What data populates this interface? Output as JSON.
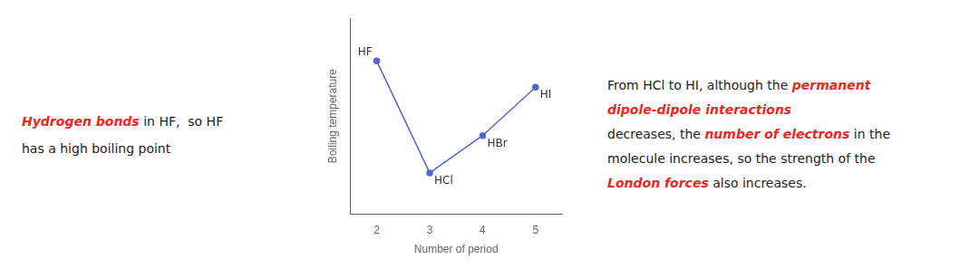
{
  "chart_data": {
    "type": "line",
    "x": [
      2,
      3,
      4,
      5
    ],
    "values": [
      0.82,
      0.22,
      0.42,
      0.68
    ],
    "point_labels": [
      "HF",
      "HCl",
      "HBr",
      "HI"
    ],
    "color": "#5566cc",
    "marker": "circle",
    "xlabel": "Number of period",
    "ylabel": "Boiling temperature",
    "xlim": [
      1.5,
      5.5
    ],
    "ylim": [
      0.0,
      1.05
    ],
    "xticks": [
      2,
      3,
      4,
      5
    ],
    "yticks": [],
    "grid": false,
    "tick_labels": "x",
    "annotations": [
      [
        [
          {
            "text": "Hydrogen bonds",
            "color": "#e8281e"
          },
          {
            "text": " in HF,  so HF"
          }
        ],
        [
          {
            "text": "has a high boiling point"
          }
        ]
      ],
      [
        [
          {
            "text": "From HCl to HI, although the "
          },
          {
            "text": "permanent",
            "color": "#e8281e"
          }
        ],
        [
          {
            "text": "dipole-dipole interactions",
            "color": "#e8281e"
          }
        ],
        [
          {
            "text": "decreases, the "
          },
          {
            "text": "number of electrons",
            "color": "#e8281e"
          },
          {
            "text": " in the"
          }
        ],
        [
          {
            "text": "molecule increases, so the strength of the"
          }
        ],
        [
          {
            "text": "London forces",
            "color": "#e8281e"
          },
          {
            "text": " also increases."
          }
        ]
      ]
    ]
  }
}
